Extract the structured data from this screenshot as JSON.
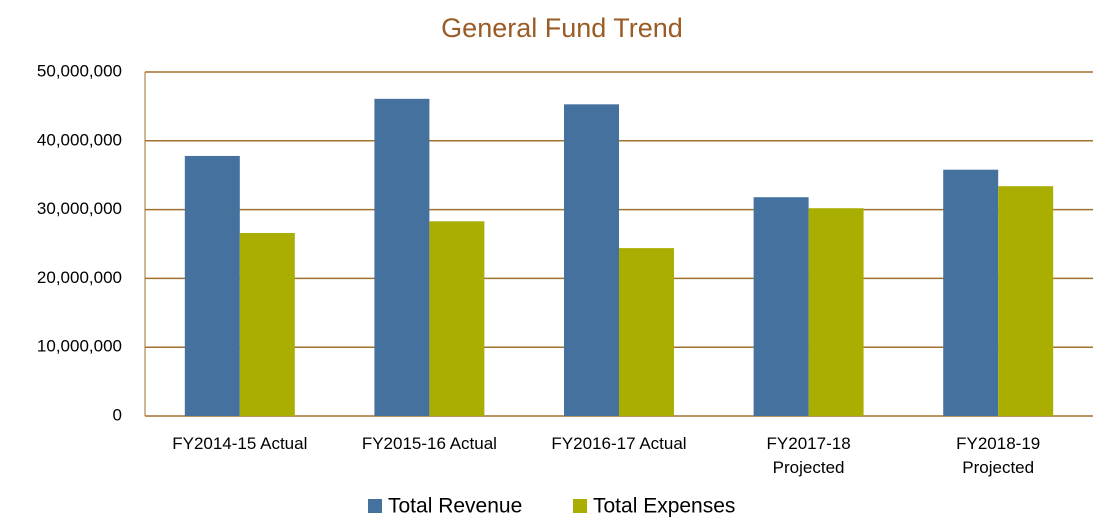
{
  "chart_data": {
    "type": "bar",
    "title": "General Fund Trend",
    "categories": [
      "FY2014-15 Actual",
      "FY2015-16 Actual",
      "FY2016-17 Actual",
      "FY2017-18\nProjected",
      "FY2018-19\nProjected"
    ],
    "series": [
      {
        "name": "Total Revenue",
        "color": "#44719e",
        "values": [
          37800000,
          46100000,
          45300000,
          31800000,
          35800000
        ]
      },
      {
        "name": "Total Expenses",
        "color": "#a9ae00",
        "values": [
          26600000,
          28300000,
          24400000,
          30200000,
          33400000
        ]
      }
    ],
    "ylim": [
      0,
      50000000
    ],
    "yticks": [
      0,
      {
        "value": 10000000,
        "label": "10,000,000"
      },
      {
        "value": 20000000,
        "label": "20,000,000"
      },
      {
        "value": 30000000,
        "label": "30,000,000"
      },
      {
        "value": 40000000,
        "label": "40,000,000"
      },
      {
        "value": 50000000,
        "label": "50,000,000"
      }
    ],
    "grid": true,
    "legend": "bottom"
  }
}
